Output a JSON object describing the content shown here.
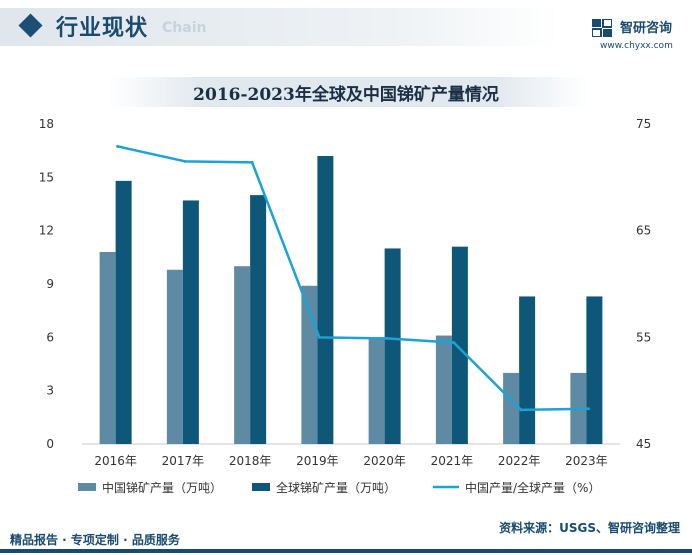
{
  "header": {
    "title": "行业现状",
    "ghost_text": "Chain",
    "logo_name": "智研咨询",
    "logo_url": "www.chyxx.com"
  },
  "chart_data": {
    "type": "bar",
    "title": "2016-2023年全球及中国锑矿产量情况",
    "categories": [
      "2016年",
      "2017年",
      "2018年",
      "2019年",
      "2020年",
      "2021年",
      "2022年",
      "2023年"
    ],
    "series": [
      {
        "name": "中国锑矿产量（万吨）",
        "kind": "bar",
        "axis": "left",
        "color": "#5f8aa3",
        "values": [
          10.8,
          9.8,
          10.0,
          8.9,
          6.0,
          6.1,
          4.0,
          4.0
        ]
      },
      {
        "name": "全球锑矿产量（万吨）",
        "kind": "bar",
        "axis": "left",
        "color": "#0e5778",
        "values": [
          14.8,
          13.7,
          14.0,
          16.2,
          11.0,
          11.1,
          8.3,
          8.3
        ]
      },
      {
        "name": "中国产量/全球产量（%）",
        "kind": "line",
        "axis": "right",
        "color": "#1ba3d6",
        "values": [
          72.9,
          71.5,
          71.4,
          55.0,
          54.9,
          54.5,
          48.2,
          48.3
        ]
      }
    ],
    "y_left": {
      "min": 0,
      "max": 18,
      "ticks": [
        "0",
        "3",
        "6",
        "9",
        "12",
        "15",
        "18"
      ]
    },
    "y_right": {
      "min": 45,
      "max": 75,
      "ticks": [
        "45",
        "55",
        "65",
        "75"
      ]
    },
    "grid": false,
    "legend": "bottom"
  },
  "footer": {
    "left": "精品报告 · 专项定制 · 品质服务",
    "right": "资料来源：USGS、智研咨询整理"
  },
  "colors": {
    "brand": "#1a4a6e",
    "china_bar": "#5f8aa3",
    "global_bar": "#0e5778",
    "ratio_line": "#1ba3d6"
  }
}
